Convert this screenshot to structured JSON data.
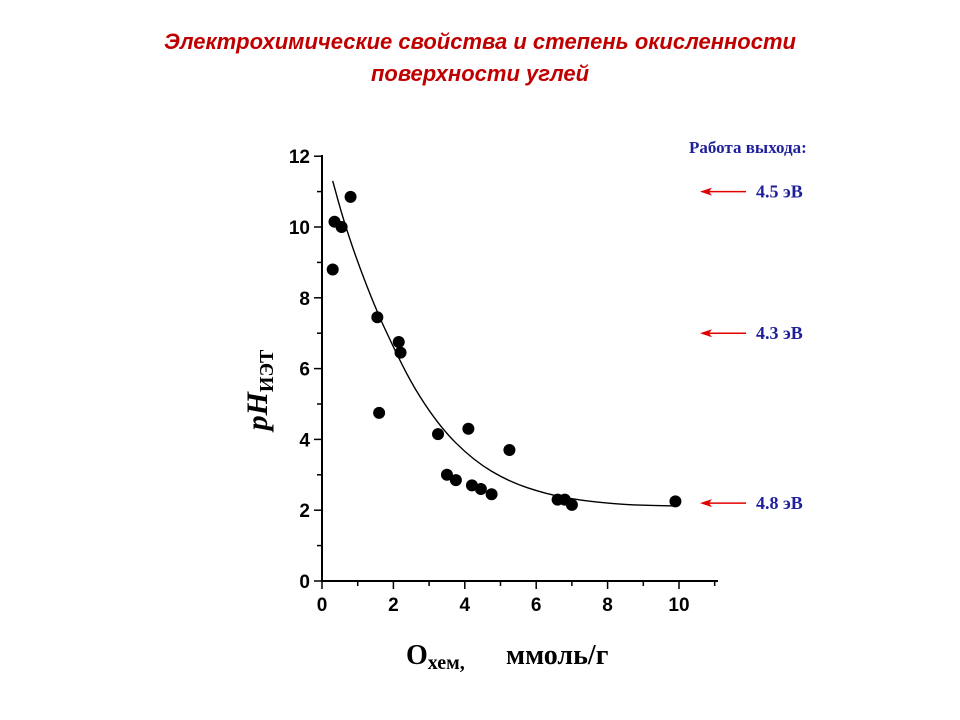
{
  "title": {
    "line1": "Электрохимические свойства и степень окисленности",
    "line2": "поверхности углей"
  },
  "work_function": {
    "heading": "Работа выхода:",
    "labels": [
      {
        "text": "4.5 эВ",
        "y": 11
      },
      {
        "text": "4.3 эВ",
        "y": 7.0
      },
      {
        "text": "4.8 эВ",
        "y": 2.2
      }
    ]
  },
  "colors": {
    "title": "#c00000",
    "heading": "#1f1f9c",
    "arrow": "#e00000",
    "points": "#000000"
  },
  "chart_data": {
    "type": "scatter",
    "xlabel_main": "O",
    "xlabel_sub": "хем,",
    "xlabel_unit": "ммоль/г",
    "ylabel_main": "pH",
    "ylabel_sub": "ИЭТ",
    "xlim": [
      0,
      11
    ],
    "ylim": [
      0,
      12
    ],
    "xticks": [
      "0",
      "2",
      "4",
      "6",
      "8",
      "10"
    ],
    "yticks": [
      "0",
      "2",
      "4",
      "6",
      "8",
      "10",
      "12"
    ],
    "points": [
      {
        "x": 0.3,
        "y": 8.8
      },
      {
        "x": 0.35,
        "y": 10.15
      },
      {
        "x": 0.55,
        "y": 10.0
      },
      {
        "x": 0.8,
        "y": 10.85
      },
      {
        "x": 1.55,
        "y": 7.45
      },
      {
        "x": 1.6,
        "y": 4.75
      },
      {
        "x": 2.15,
        "y": 6.75
      },
      {
        "x": 2.2,
        "y": 6.45
      },
      {
        "x": 3.25,
        "y": 4.15
      },
      {
        "x": 3.5,
        "y": 3.0
      },
      {
        "x": 3.75,
        "y": 2.85
      },
      {
        "x": 4.1,
        "y": 4.3
      },
      {
        "x": 4.2,
        "y": 2.7
      },
      {
        "x": 4.45,
        "y": 2.6
      },
      {
        "x": 4.75,
        "y": 2.45
      },
      {
        "x": 5.25,
        "y": 3.7
      },
      {
        "x": 6.6,
        "y": 2.3
      },
      {
        "x": 6.8,
        "y": 2.3
      },
      {
        "x": 7.0,
        "y": 2.15
      },
      {
        "x": 9.9,
        "y": 2.25
      }
    ],
    "fit_curve": [
      {
        "x": 0.3,
        "y": 11.3
      },
      {
        "x": 0.6,
        "y": 10.2
      },
      {
        "x": 1.0,
        "y": 9.0
      },
      {
        "x": 1.5,
        "y": 7.7
      },
      {
        "x": 2.0,
        "y": 6.6
      },
      {
        "x": 2.5,
        "y": 5.6
      },
      {
        "x": 3.0,
        "y": 4.8
      },
      {
        "x": 3.5,
        "y": 4.15
      },
      {
        "x": 4.0,
        "y": 3.65
      },
      {
        "x": 4.5,
        "y": 3.25
      },
      {
        "x": 5.0,
        "y": 2.95
      },
      {
        "x": 5.5,
        "y": 2.72
      },
      {
        "x": 6.0,
        "y": 2.55
      },
      {
        "x": 6.5,
        "y": 2.42
      },
      {
        "x": 7.0,
        "y": 2.32
      },
      {
        "x": 7.5,
        "y": 2.25
      },
      {
        "x": 8.0,
        "y": 2.2
      },
      {
        "x": 8.5,
        "y": 2.16
      },
      {
        "x": 9.0,
        "y": 2.14
      },
      {
        "x": 9.5,
        "y": 2.13
      },
      {
        "x": 9.9,
        "y": 2.12
      }
    ],
    "grid": false
  }
}
